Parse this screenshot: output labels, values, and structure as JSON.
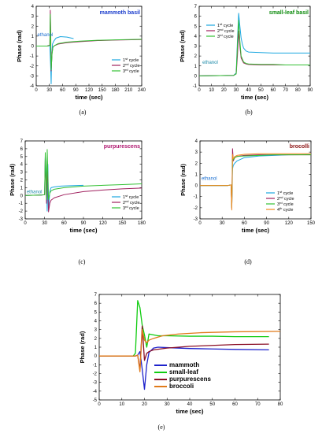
{
  "panel_labels": [
    "(a)",
    "(b)",
    "(c)",
    "(d)",
    "(e)"
  ],
  "colors": {
    "c1": "#1ba7e0",
    "c2": "#a0205e",
    "c3": "#33c033",
    "c4": "#f08a20",
    "mammoth": "#1e22cc",
    "smallleaf": "#11cc11",
    "purpurescens": "#8b0f26",
    "broccoli": "#e07a1a"
  },
  "chart_data": [
    {
      "type": "line",
      "title": "mammoth basil",
      "annotation": "ethanol",
      "xlabel": "time (sec)",
      "ylabel": "Phase (rad)",
      "xlim": [
        0,
        240
      ],
      "ylim": [
        -4,
        4
      ],
      "xticks": [
        0,
        30,
        60,
        90,
        120,
        150,
        180,
        210,
        240
      ],
      "yticks": [
        -4,
        -3,
        -2,
        -1,
        0,
        1,
        2,
        3,
        4
      ],
      "grid": false,
      "legend_position": "bottom-right",
      "series": [
        {
          "name": "1st cycle",
          "x": [
            0,
            25,
            31,
            33,
            34,
            35,
            37,
            40,
            45,
            55,
            70,
            85
          ],
          "y": [
            0,
            0,
            0.05,
            -2.2,
            -3.8,
            -1.5,
            0.2,
            0.5,
            0.8,
            0.95,
            0.9,
            0.75
          ]
        },
        {
          "name": "2nd cycle",
          "x": [
            0,
            25,
            31,
            32,
            33,
            34,
            36,
            38,
            42,
            50,
            70,
            100,
            140,
            180,
            240
          ],
          "y": [
            0,
            0,
            0.1,
            3.6,
            1.5,
            -2.5,
            -0.7,
            -0.1,
            0.05,
            0.2,
            0.35,
            0.45,
            0.55,
            0.6,
            0.65
          ]
        },
        {
          "name": "3rd cycle",
          "x": [
            0,
            25,
            31,
            32,
            34,
            36,
            38,
            42,
            50,
            70,
            100,
            140,
            180,
            240
          ],
          "y": [
            0,
            0,
            0.05,
            3.2,
            -2.4,
            -0.8,
            -0.1,
            0.05,
            0.25,
            0.4,
            0.5,
            0.58,
            0.62,
            0.68
          ]
        }
      ]
    },
    {
      "type": "line",
      "title": "small-leaf basil",
      "annotation": "ethanol",
      "xlabel": "time (sec)",
      "ylabel": "Phase (rad)",
      "xlim": [
        0,
        90
      ],
      "ylim": [
        -1,
        7
      ],
      "xticks": [
        0,
        10,
        20,
        30,
        40,
        50,
        60,
        70,
        80,
        90
      ],
      "yticks": [
        -1,
        0,
        1,
        2,
        3,
        4,
        5,
        6,
        7
      ],
      "grid": false,
      "legend_position": "top-left",
      "series": [
        {
          "name": "1st cycle",
          "x": [
            0,
            28,
            30,
            31,
            32,
            33,
            34,
            35,
            36,
            38,
            40,
            50,
            60,
            70,
            80,
            90
          ],
          "y": [
            0,
            0.05,
            0.3,
            3.5,
            6.3,
            5.0,
            3.8,
            3.2,
            2.8,
            2.5,
            2.4,
            2.35,
            2.3,
            2.3,
            2.3,
            2.3
          ]
        },
        {
          "name": "2nd cycle",
          "x": [
            0,
            28,
            30,
            31,
            32,
            33,
            34,
            36,
            38,
            40,
            50,
            60,
            70,
            80,
            90
          ],
          "y": [
            0,
            0.05,
            0.2,
            2.0,
            4.5,
            3.0,
            1.8,
            1.3,
            1.2,
            1.15,
            1.1,
            1.1,
            1.1,
            1.1,
            1.1
          ]
        },
        {
          "name": "3rd cycle",
          "x": [
            0,
            28,
            30,
            31,
            32,
            33,
            34,
            36,
            38,
            40,
            50,
            60,
            70,
            80,
            90
          ],
          "y": [
            0,
            0.05,
            0.2,
            3.0,
            5.6,
            3.5,
            2.0,
            1.4,
            1.25,
            1.2,
            1.15,
            1.15,
            1.1,
            1.1,
            1.1
          ]
        }
      ]
    },
    {
      "type": "line",
      "title": "purpurescens",
      "annotation": "ethanol",
      "xlabel": "time (sec)",
      "ylabel": "Phase (rad)",
      "xlim": [
        0,
        180
      ],
      "ylim": [
        -3,
        7
      ],
      "xticks": [
        0,
        30,
        60,
        90,
        120,
        150,
        180
      ],
      "yticks": [
        -3,
        -2,
        -1,
        0,
        1,
        2,
        3,
        4,
        5,
        6,
        7
      ],
      "grid": false,
      "legend_position": "bottom-right",
      "series": [
        {
          "name": "1st cycle",
          "x": [
            0,
            25,
            30,
            31,
            32,
            34,
            35,
            36,
            38,
            40,
            45,
            55,
            70,
            90
          ],
          "y": [
            0,
            0.05,
            0.1,
            5.0,
            3.5,
            -2.0,
            4.0,
            -1.8,
            0.5,
            1.0,
            1.1,
            1.2,
            1.25,
            1.3
          ]
        },
        {
          "name": "2nd cycle",
          "x": [
            0,
            25,
            30,
            31,
            33,
            34,
            36,
            38,
            40,
            45,
            60,
            90,
            120,
            150,
            180
          ],
          "y": [
            0,
            0.05,
            0.1,
            4.8,
            -1.0,
            4.5,
            -2.1,
            -1.0,
            -0.6,
            -0.3,
            0.1,
            0.5,
            0.7,
            0.85,
            0.95
          ]
        },
        {
          "name": "3rd cycle",
          "x": [
            0,
            25,
            30,
            31,
            33,
            34,
            36,
            38,
            40,
            45,
            60,
            90,
            120,
            150,
            180
          ],
          "y": [
            0,
            0.05,
            0.1,
            5.5,
            -0.5,
            5.9,
            -0.5,
            0.3,
            0.6,
            0.8,
            1.0,
            1.2,
            1.3,
            1.4,
            1.5
          ]
        }
      ]
    },
    {
      "type": "line",
      "title": "brocolli",
      "annotation": "ethanol",
      "xlabel": "time (sec)",
      "ylabel": "Phase (rad)",
      "xlim": [
        0,
        150
      ],
      "ylim": [
        -3,
        4
      ],
      "xticks": [
        0,
        30,
        60,
        90,
        120,
        150
      ],
      "yticks": [
        -3,
        -2,
        -1,
        0,
        1,
        2,
        3,
        4
      ],
      "grid": false,
      "legend_position": "bottom-right",
      "series": [
        {
          "name": "1st cycle",
          "x": [
            0,
            38,
            42,
            43,
            44,
            45,
            47,
            50,
            60,
            80,
            100,
            120,
            150
          ],
          "y": [
            0,
            0,
            0.05,
            -2.0,
            1.5,
            1.8,
            2.0,
            2.2,
            2.5,
            2.65,
            2.7,
            2.75,
            2.78
          ]
        },
        {
          "name": "2nd cycle",
          "x": [
            0,
            38,
            42,
            43,
            44,
            45,
            47,
            50,
            60,
            80,
            100,
            120,
            150
          ],
          "y": [
            0,
            0,
            0.05,
            -2.1,
            3.3,
            2.2,
            2.5,
            2.6,
            2.7,
            2.75,
            2.75,
            2.75,
            2.75
          ]
        },
        {
          "name": "3rd cycle",
          "x": [
            0,
            38,
            42,
            43,
            44,
            45,
            47,
            50,
            60,
            80,
            100,
            120,
            150
          ],
          "y": [
            0,
            0,
            0.05,
            -2.0,
            2.6,
            2.3,
            2.5,
            2.6,
            2.65,
            2.7,
            2.75,
            2.75,
            2.75
          ]
        },
        {
          "name": "4th cycle",
          "x": [
            0,
            38,
            42,
            43,
            44,
            45,
            47,
            50,
            60,
            80,
            100,
            120,
            150
          ],
          "y": [
            0,
            0,
            0.05,
            -2.2,
            2.8,
            2.4,
            2.6,
            2.7,
            2.8,
            2.85,
            2.85,
            2.85,
            2.85
          ]
        }
      ]
    },
    {
      "type": "line",
      "title": "",
      "xlabel": "time (sec)",
      "ylabel": "Phase (rad)",
      "xlim": [
        0,
        80
      ],
      "ylim": [
        -5,
        7
      ],
      "xticks": [
        0,
        10,
        20,
        30,
        40,
        50,
        60,
        70,
        80
      ],
      "yticks": [
        -5,
        -4,
        -3,
        -2,
        -1,
        0,
        1,
        2,
        3,
        4,
        5,
        6,
        7
      ],
      "grid": false,
      "legend_position": "bottom-right",
      "series": [
        {
          "name": "mammoth",
          "x": [
            0,
            16,
            17,
            18,
            19,
            20,
            21,
            22,
            24,
            26,
            30,
            40,
            50,
            60,
            75
          ],
          "y": [
            0,
            0,
            0.1,
            0.5,
            -1.5,
            -3.8,
            -1.0,
            0.4,
            0.9,
            1.0,
            0.95,
            0.85,
            0.8,
            0.75,
            0.7
          ]
        },
        {
          "name": "small-leaf",
          "x": [
            0,
            15,
            16,
            17,
            18,
            19,
            20,
            21,
            22,
            24,
            26,
            30,
            40,
            50,
            60,
            75
          ],
          "y": [
            0,
            0,
            0.3,
            6.3,
            5.5,
            3.5,
            2.4,
            1.0,
            2.5,
            2.4,
            2.3,
            2.3,
            2.25,
            2.25,
            2.2,
            2.2
          ]
        },
        {
          "name": "purpurescens",
          "x": [
            0,
            16,
            17,
            18,
            19,
            20,
            21,
            22,
            24,
            30,
            40,
            50,
            60,
            75
          ],
          "y": [
            0,
            0,
            0.1,
            -1.6,
            3.4,
            -0.5,
            0.3,
            0.5,
            0.7,
            0.9,
            1.1,
            1.2,
            1.3,
            1.35
          ]
        },
        {
          "name": "broccoli",
          "x": [
            0,
            16,
            17,
            18,
            19,
            20,
            21,
            22,
            24,
            28,
            35,
            45,
            60,
            80
          ],
          "y": [
            0,
            0,
            0.1,
            -1.8,
            3.0,
            1.8,
            1.5,
            1.8,
            2.0,
            2.3,
            2.5,
            2.65,
            2.75,
            2.8
          ]
        }
      ]
    }
  ]
}
